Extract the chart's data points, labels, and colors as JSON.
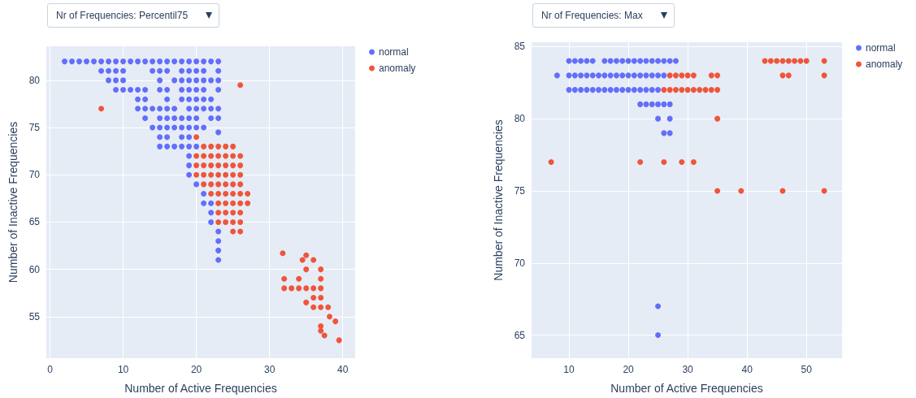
{
  "chart_data": [
    {
      "type": "scatter",
      "title": "Nr of Frequencies: Percentil75",
      "xlabel": "Number of Active Frequencies",
      "ylabel": "Number of Inactive Frequencies",
      "xlim": [
        -0.5,
        41.7
      ],
      "ylim": [
        50.6,
        83.6
      ],
      "xticks": [
        0,
        10,
        20,
        30,
        40
      ],
      "yticks": [
        55,
        60,
        65,
        70,
        75,
        80
      ],
      "grid": true,
      "legend": "top right",
      "marker": "circle",
      "series": [
        {
          "name": "normal",
          "color": "#636efa",
          "x": [
            2,
            3,
            4,
            5,
            6,
            7,
            8,
            9,
            10,
            11,
            12,
            13,
            14,
            15,
            16,
            17,
            18,
            19,
            20,
            21,
            22,
            23,
            7,
            8,
            9,
            10,
            14,
            15,
            16,
            18,
            19,
            20,
            21,
            23,
            8,
            9,
            10,
            15,
            17,
            18,
            19,
            20,
            21,
            22,
            23,
            9,
            10,
            11,
            12,
            13,
            15,
            16,
            18,
            19,
            20,
            21,
            23,
            12,
            13,
            16,
            18,
            19,
            20,
            21,
            22,
            12,
            13,
            14,
            15,
            16,
            17,
            19,
            20,
            21,
            22,
            23,
            13,
            15,
            16,
            17,
            18,
            19,
            20,
            22,
            23,
            14,
            15,
            16,
            17,
            18,
            19,
            20,
            21,
            15,
            16,
            18,
            19,
            23,
            15,
            16,
            17,
            18,
            19,
            20,
            19,
            19,
            19,
            20,
            21,
            21,
            22,
            22,
            22,
            23,
            23,
            23,
            23
          ],
          "values": [
            82,
            82,
            82,
            82,
            82,
            82,
            82,
            82,
            82,
            82,
            82,
            82,
            82,
            82,
            82,
            82,
            82,
            82,
            82,
            82,
            82,
            82,
            81,
            81,
            81,
            81,
            81,
            81,
            81,
            81,
            81,
            81,
            81,
            81,
            80,
            80,
            80,
            80,
            80,
            80,
            80,
            80,
            80,
            80,
            80,
            79,
            79,
            79,
            79,
            79,
            79,
            79,
            79,
            79,
            79,
            79,
            79,
            78,
            78,
            78,
            78,
            78,
            78,
            78,
            78,
            77,
            77,
            77,
            77,
            77,
            77,
            77,
            77,
            77,
            77,
            77,
            76,
            76,
            76,
            76,
            76,
            76,
            76,
            76,
            76,
            75,
            75,
            75,
            75,
            75,
            75,
            75,
            75,
            74,
            74,
            74,
            74,
            74.5,
            73,
            73,
            73,
            73,
            73,
            73,
            72,
            71,
            70,
            69,
            68,
            67,
            67,
            66,
            65,
            64,
            63,
            62,
            61
          ]
        },
        {
          "name": "anomaly",
          "color": "#ef553b",
          "x": [
            7,
            26,
            21,
            22,
            23,
            24,
            25,
            20,
            21,
            22,
            23,
            24,
            25,
            26,
            20,
            21,
            22,
            23,
            24,
            25,
            26,
            20,
            21,
            22,
            23,
            24,
            25,
            26,
            21,
            22,
            23,
            24,
            25,
            26,
            22,
            23,
            24,
            25,
            26,
            27,
            23,
            24,
            25,
            26,
            27,
            23,
            24,
            25,
            26,
            23,
            24,
            25,
            26,
            25,
            26,
            20,
            31.8,
            32,
            32,
            33,
            34,
            34,
            34.5,
            35,
            35,
            35,
            35,
            36,
            36,
            36,
            36,
            37,
            37,
            37,
            37,
            37,
            37,
            38,
            38.2,
            37,
            37.5,
            39,
            39.5
          ],
          "values": [
            77,
            79.5,
            73,
            73,
            73,
            73,
            73,
            72,
            72,
            72,
            72,
            72,
            72,
            72,
            71,
            71,
            71,
            71,
            71,
            71,
            71,
            70,
            70,
            70,
            70,
            70,
            70,
            70,
            69,
            69,
            69,
            69,
            69,
            69,
            68,
            68,
            68,
            68,
            68,
            68,
            67,
            67,
            67,
            67,
            67,
            66,
            66,
            66,
            66,
            65,
            65,
            65,
            65,
            64,
            64,
            74,
            61.7,
            59,
            58,
            58,
            59,
            58,
            61,
            61.5,
            60,
            58,
            56.5,
            58,
            57,
            56,
            61,
            60,
            59,
            58,
            57,
            56,
            54,
            56,
            55,
            53.5,
            53,
            54.5,
            52.5
          ]
        }
      ]
    },
    {
      "type": "scatter",
      "title": "Nr of Frequencies: Max",
      "xlabel": "Number of Active Frequencies",
      "ylabel": "Number of Inactive Frequencies",
      "xlim": [
        3.7,
        56
      ],
      "ylim": [
        63.4,
        85.3
      ],
      "xticks": [
        10,
        20,
        30,
        40,
        50
      ],
      "yticks": [
        65,
        70,
        75,
        80,
        85
      ],
      "grid": true,
      "legend": "top right",
      "marker": "circle",
      "series": [
        {
          "name": "normal",
          "color": "#636efa",
          "x": [
            10,
            11,
            12,
            13,
            14,
            16,
            17,
            18,
            19,
            20,
            21,
            22,
            23,
            24,
            25,
            26,
            27,
            28,
            8,
            10,
            11,
            12,
            13,
            14,
            15,
            16,
            17,
            18,
            19,
            20,
            21,
            22,
            23,
            24,
            25,
            26,
            10,
            11,
            12,
            13,
            14,
            15,
            16,
            17,
            18,
            19,
            20,
            21,
            22,
            23,
            24,
            25,
            22,
            23,
            24,
            25,
            26,
            27,
            25,
            27,
            26,
            27,
            25,
            25
          ],
          "values": [
            84,
            84,
            84,
            84,
            84,
            84,
            84,
            84,
            84,
            84,
            84,
            84,
            84,
            84,
            84,
            84,
            84,
            84,
            83,
            83,
            83,
            83,
            83,
            83,
            83,
            83,
            83,
            83,
            83,
            83,
            83,
            83,
            83,
            83,
            83,
            83,
            82,
            82,
            82,
            82,
            82,
            82,
            82,
            82,
            82,
            82,
            82,
            82,
            82,
            82,
            82,
            82,
            81,
            81,
            81,
            81,
            81,
            81,
            80,
            80,
            79,
            79,
            67,
            65
          ]
        },
        {
          "name": "anomaly",
          "color": "#ef553b",
          "x": [
            43,
            44,
            45,
            46,
            47,
            48,
            49,
            50,
            53,
            27,
            28,
            29,
            30,
            31,
            34,
            35,
            46,
            47,
            53,
            26,
            27,
            28,
            29,
            30,
            31,
            32,
            33,
            34,
            35,
            35,
            7,
            22,
            26,
            29,
            31,
            35,
            39,
            46,
            53
          ],
          "values": [
            84,
            84,
            84,
            84,
            84,
            84,
            84,
            84,
            84,
            83,
            83,
            83,
            83,
            83,
            83,
            83,
            83,
            83,
            83,
            82,
            82,
            82,
            82,
            82,
            82,
            82,
            82,
            82,
            82,
            80,
            77,
            77,
            77,
            77,
            77,
            75,
            75,
            75,
            75
          ]
        }
      ]
    }
  ]
}
